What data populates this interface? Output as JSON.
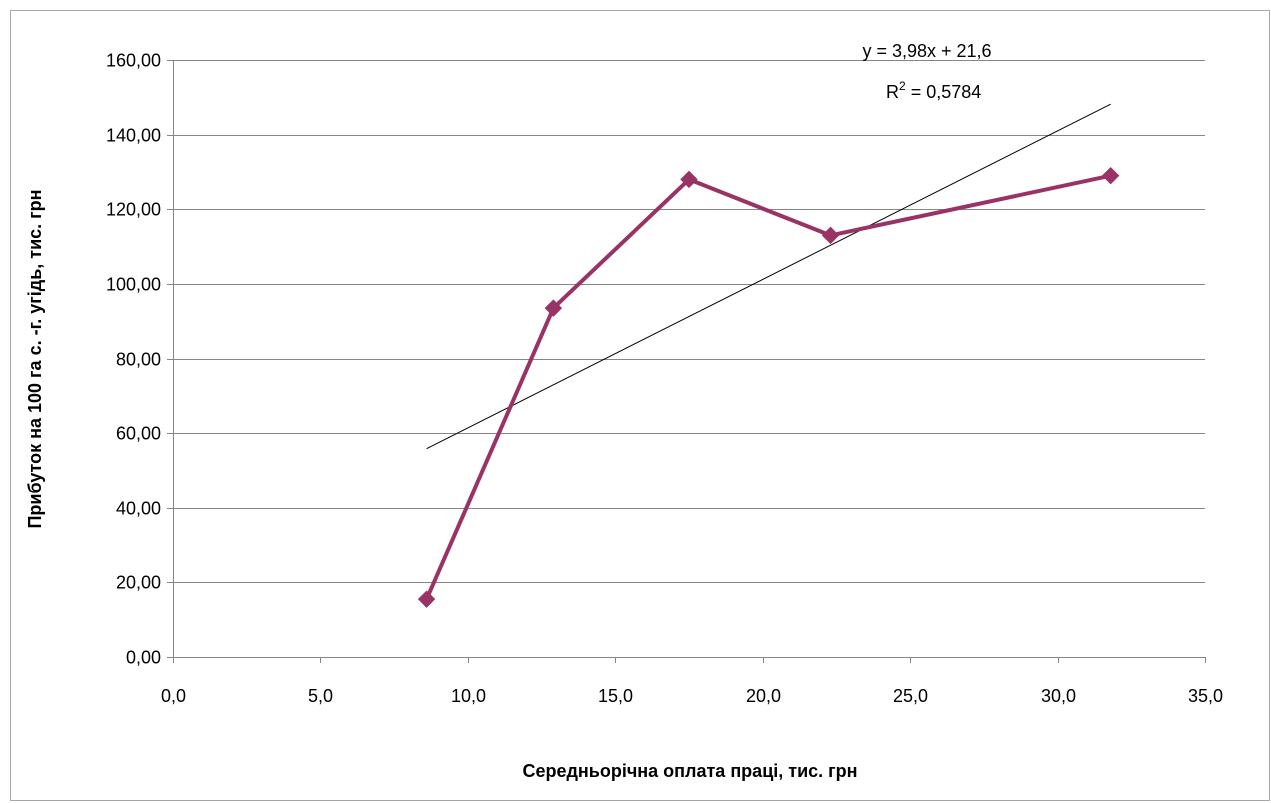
{
  "chart_data": {
    "type": "scatter",
    "xlabel": "Середньорічна оплата праці, тис. грн",
    "ylabel": "Прибуток на 100 га с. -г. угідь, тис. грн",
    "xlim": [
      0,
      35
    ],
    "ylim": [
      0,
      160
    ],
    "x_ticks": [
      "0,0",
      "5,0",
      "10,0",
      "15,0",
      "20,0",
      "25,0",
      "30,0",
      "35,0"
    ],
    "y_ticks": [
      "0,00",
      "20,00",
      "40,00",
      "60,00",
      "80,00",
      "100,00",
      "120,00",
      "140,00",
      "160,00"
    ],
    "grid": true,
    "series": [
      {
        "x": [
          8.6,
          12.9,
          17.5,
          22.3,
          31.8
        ],
        "y": [
          15.5,
          93.5,
          128.0,
          113.0,
          129.0
        ],
        "color": "#993366",
        "marker": "diamond",
        "line": true
      }
    ],
    "trendline": {
      "type": "linear",
      "slope": 3.98,
      "intercept": 21.6,
      "x_range": [
        8.6,
        31.8
      ],
      "color": "#000000",
      "equation": "y = 3,98x + 21,6",
      "r2_prefix": "R",
      "r2_sup": "2",
      "r2_value": " = 0,5784"
    }
  }
}
